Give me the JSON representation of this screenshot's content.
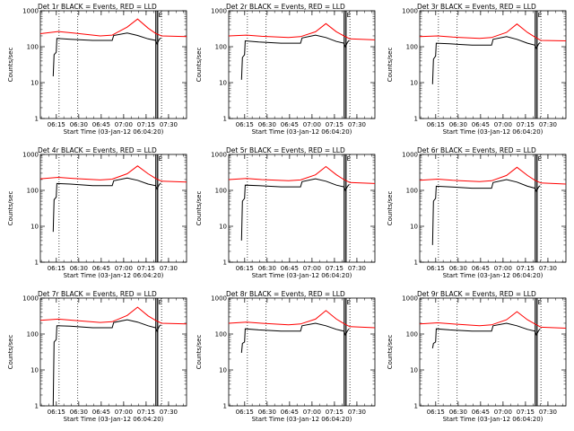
{
  "chart_data": {
    "type": "line",
    "y_scale": "log",
    "ylim": [
      1,
      1000
    ],
    "y_ticks": [
      1,
      10,
      100,
      1000
    ],
    "y_tick_labels": [
      "1",
      "10",
      "100",
      "1000"
    ],
    "ylabel": "Counts/sec",
    "xlabel": "Start Time (03-Jan-12 06:04:20)",
    "x_unit": "minutes after 06:04:20",
    "xlim": [
      0,
      97.7
    ],
    "x_ticks": [
      10.67,
      25.67,
      40.67,
      55.67,
      70.67,
      85.67
    ],
    "x_tick_labels": [
      "06:15",
      "06:30",
      "06:45",
      "07:00",
      "07:15",
      "07:30"
    ],
    "annotations": {
      "dotted_markers_x": [
        12.5,
        25.0,
        81.0
      ],
      "solid_markers_x": [
        77.2,
        78.4
      ],
      "marker_letter": "E",
      "marker_letter_x": 78.9
    },
    "series_names": [
      "Events (BLACK)",
      "LLD (RED)"
    ],
    "detectors": [
      {
        "title": "Det 1r  BLACK = Events, RED = LLD",
        "events": [
          [
            8.6,
            15
          ],
          [
            9.2,
            60
          ],
          [
            10.6,
            70
          ],
          [
            11,
            170
          ],
          [
            20,
            160
          ],
          [
            35,
            150
          ],
          [
            48,
            150
          ],
          [
            49,
            205
          ],
          [
            58,
            240
          ],
          [
            65,
            205
          ],
          [
            72,
            165
          ],
          [
            77,
            150
          ],
          [
            78,
            120
          ],
          [
            79.5,
            160
          ],
          [
            80.5,
            175
          ]
        ],
        "lld": [
          [
            0,
            230
          ],
          [
            12,
            265
          ],
          [
            22,
            240
          ],
          [
            40,
            200
          ],
          [
            48,
            210
          ],
          [
            58,
            350
          ],
          [
            65,
            590
          ],
          [
            72,
            330
          ],
          [
            77,
            235
          ],
          [
            81,
            200
          ],
          [
            97.7,
            190
          ]
        ]
      },
      {
        "title": "Det 2r  BLACK = Events, RED = LLD",
        "events": [
          [
            8.6,
            12
          ],
          [
            9.2,
            50
          ],
          [
            10.6,
            60
          ],
          [
            11,
            145
          ],
          [
            20,
            135
          ],
          [
            35,
            125
          ],
          [
            48,
            125
          ],
          [
            49,
            175
          ],
          [
            58,
            210
          ],
          [
            65,
            180
          ],
          [
            72,
            140
          ],
          [
            77,
            125
          ],
          [
            78,
            100
          ],
          [
            79.5,
            135
          ],
          [
            80.5,
            150
          ]
        ],
        "lld": [
          [
            0,
            200
          ],
          [
            12,
            210
          ],
          [
            22,
            195
          ],
          [
            40,
            180
          ],
          [
            48,
            190
          ],
          [
            58,
            260
          ],
          [
            65,
            440
          ],
          [
            72,
            260
          ],
          [
            77,
            200
          ],
          [
            81,
            165
          ],
          [
            97.7,
            155
          ]
        ]
      },
      {
        "title": "Det 3r  BLACK = Events, RED = LLD",
        "events": [
          [
            8.6,
            9
          ],
          [
            9.2,
            45
          ],
          [
            10.6,
            55
          ],
          [
            11,
            125
          ],
          [
            20,
            120
          ],
          [
            35,
            110
          ],
          [
            48,
            110
          ],
          [
            49,
            160
          ],
          [
            58,
            190
          ],
          [
            65,
            160
          ],
          [
            72,
            125
          ],
          [
            77,
            110
          ],
          [
            78,
            90
          ],
          [
            79.5,
            120
          ],
          [
            80.5,
            130
          ]
        ],
        "lld": [
          [
            0,
            190
          ],
          [
            12,
            200
          ],
          [
            22,
            185
          ],
          [
            40,
            170
          ],
          [
            48,
            180
          ],
          [
            58,
            250
          ],
          [
            65,
            430
          ],
          [
            72,
            250
          ],
          [
            77,
            185
          ],
          [
            81,
            150
          ],
          [
            97.7,
            145
          ]
        ]
      },
      {
        "title": "Det 4r  BLACK = Events, RED = LLD",
        "events": [
          [
            8.6,
            7
          ],
          [
            9.2,
            55
          ],
          [
            10.6,
            65
          ],
          [
            11,
            155
          ],
          [
            20,
            150
          ],
          [
            35,
            135
          ],
          [
            48,
            135
          ],
          [
            49,
            185
          ],
          [
            58,
            220
          ],
          [
            65,
            190
          ],
          [
            72,
            150
          ],
          [
            77,
            135
          ],
          [
            78,
            110
          ],
          [
            79.5,
            145
          ],
          [
            80.5,
            160
          ]
        ],
        "lld": [
          [
            0,
            210
          ],
          [
            12,
            230
          ],
          [
            22,
            215
          ],
          [
            40,
            195
          ],
          [
            48,
            205
          ],
          [
            58,
            290
          ],
          [
            65,
            480
          ],
          [
            72,
            290
          ],
          [
            77,
            215
          ],
          [
            81,
            180
          ],
          [
            97.7,
            170
          ]
        ]
      },
      {
        "title": "Det 5r  BLACK = Events, RED = LLD",
        "events": [
          [
            8.6,
            4
          ],
          [
            9.2,
            50
          ],
          [
            10.6,
            60
          ],
          [
            11,
            140
          ],
          [
            20,
            135
          ],
          [
            35,
            125
          ],
          [
            48,
            125
          ],
          [
            49,
            175
          ],
          [
            58,
            210
          ],
          [
            65,
            180
          ],
          [
            72,
            140
          ],
          [
            77,
            125
          ],
          [
            78,
            100
          ],
          [
            79.5,
            130
          ],
          [
            80.5,
            145
          ]
        ],
        "lld": [
          [
            0,
            200
          ],
          [
            12,
            215
          ],
          [
            22,
            200
          ],
          [
            40,
            185
          ],
          [
            48,
            195
          ],
          [
            58,
            270
          ],
          [
            65,
            460
          ],
          [
            72,
            270
          ],
          [
            77,
            200
          ],
          [
            81,
            165
          ],
          [
            97.7,
            155
          ]
        ]
      },
      {
        "title": "Det 6r  BLACK = Events, RED = LLD",
        "events": [
          [
            8.6,
            3
          ],
          [
            9.2,
            50
          ],
          [
            10.6,
            60
          ],
          [
            11,
            130
          ],
          [
            20,
            125
          ],
          [
            35,
            115
          ],
          [
            48,
            115
          ],
          [
            49,
            165
          ],
          [
            58,
            200
          ],
          [
            65,
            170
          ],
          [
            72,
            130
          ],
          [
            77,
            115
          ],
          [
            78,
            95
          ],
          [
            79.5,
            125
          ],
          [
            80.5,
            135
          ]
        ],
        "lld": [
          [
            0,
            190
          ],
          [
            12,
            205
          ],
          [
            22,
            190
          ],
          [
            40,
            175
          ],
          [
            48,
            185
          ],
          [
            58,
            260
          ],
          [
            65,
            440
          ],
          [
            72,
            260
          ],
          [
            77,
            190
          ],
          [
            81,
            160
          ],
          [
            97.7,
            150
          ]
        ]
      },
      {
        "title": "Det 7r  BLACK = Events, RED = LLD",
        "events": [
          [
            8.6,
            1
          ],
          [
            9.2,
            60
          ],
          [
            10.6,
            70
          ],
          [
            11,
            170
          ],
          [
            20,
            165
          ],
          [
            35,
            150
          ],
          [
            48,
            150
          ],
          [
            49,
            210
          ],
          [
            58,
            250
          ],
          [
            65,
            215
          ],
          [
            72,
            170
          ],
          [
            77,
            150
          ],
          [
            78,
            120
          ],
          [
            79.5,
            165
          ],
          [
            80.5,
            180
          ]
        ],
        "lld": [
          [
            0,
            240
          ],
          [
            12,
            260
          ],
          [
            22,
            240
          ],
          [
            40,
            210
          ],
          [
            48,
            220
          ],
          [
            58,
            330
          ],
          [
            65,
            560
          ],
          [
            72,
            320
          ],
          [
            77,
            240
          ],
          [
            81,
            200
          ],
          [
            97.7,
            190
          ]
        ]
      },
      {
        "title": "Det 8r  BLACK = Events, RED = LLD",
        "events": [
          [
            8.6,
            30
          ],
          [
            9.2,
            55
          ],
          [
            10.6,
            60
          ],
          [
            11,
            140
          ],
          [
            20,
            130
          ],
          [
            35,
            120
          ],
          [
            48,
            120
          ],
          [
            49,
            170
          ],
          [
            58,
            200
          ],
          [
            65,
            170
          ],
          [
            72,
            135
          ],
          [
            77,
            120
          ],
          [
            78,
            95
          ],
          [
            79.5,
            125
          ],
          [
            80.5,
            140
          ]
        ],
        "lld": [
          [
            0,
            200
          ],
          [
            12,
            215
          ],
          [
            22,
            200
          ],
          [
            40,
            180
          ],
          [
            48,
            190
          ],
          [
            58,
            260
          ],
          [
            65,
            450
          ],
          [
            72,
            260
          ],
          [
            77,
            195
          ],
          [
            81,
            160
          ],
          [
            97.7,
            150
          ]
        ]
      },
      {
        "title": "Det 9r  BLACK = Events, RED = LLD",
        "events": [
          [
            8.6,
            40
          ],
          [
            9.2,
            55
          ],
          [
            10.6,
            60
          ],
          [
            11,
            140
          ],
          [
            20,
            130
          ],
          [
            35,
            120
          ],
          [
            48,
            120
          ],
          [
            49,
            170
          ],
          [
            58,
            200
          ],
          [
            65,
            170
          ],
          [
            72,
            135
          ],
          [
            77,
            120
          ],
          [
            78,
            95
          ],
          [
            79.5,
            125
          ],
          [
            80.5,
            140
          ]
        ],
        "lld": [
          [
            0,
            190
          ],
          [
            12,
            205
          ],
          [
            22,
            190
          ],
          [
            40,
            170
          ],
          [
            48,
            180
          ],
          [
            58,
            250
          ],
          [
            65,
            420
          ],
          [
            72,
            250
          ],
          [
            77,
            190
          ],
          [
            81,
            155
          ],
          [
            97.7,
            145
          ]
        ]
      }
    ]
  }
}
